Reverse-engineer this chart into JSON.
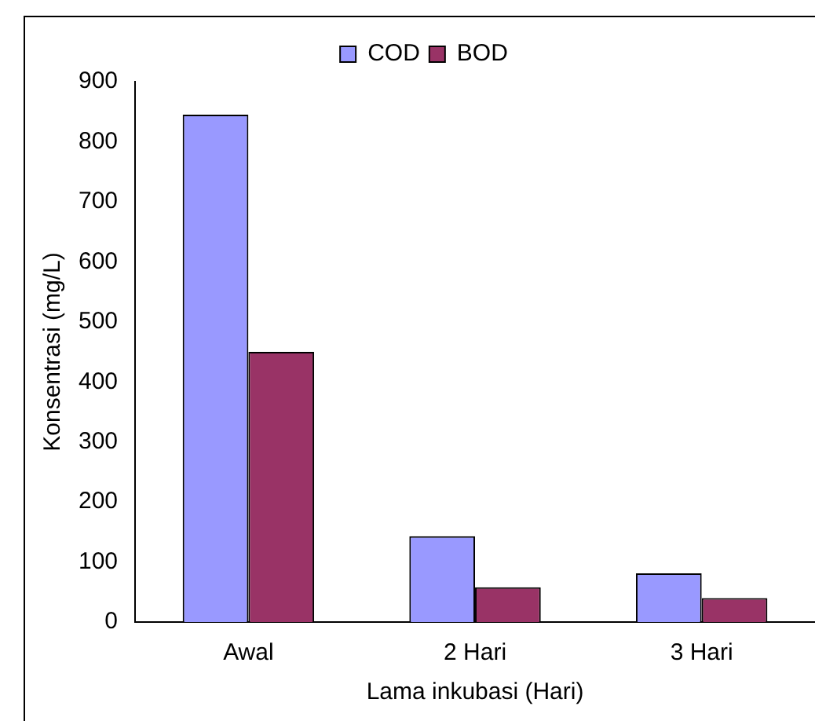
{
  "chart_data": {
    "type": "bar",
    "xlabel": "Lama inkubasi (Hari)",
    "ylabel": "Konsentrasi (mg/L)",
    "categories": [
      "Awal",
      "2 Hari",
      "3 Hari"
    ],
    "series": [
      {
        "name": "COD",
        "color": "#9999ff",
        "values": [
          845,
          143,
          81
        ]
      },
      {
        "name": "BOD",
        "color": "#993366",
        "values": [
          450,
          58,
          40
        ]
      }
    ],
    "ylim": [
      0,
      900
    ],
    "yticks": [
      0,
      100,
      200,
      300,
      400,
      500,
      600,
      700,
      800,
      900
    ],
    "grid": false,
    "legend": "top"
  }
}
